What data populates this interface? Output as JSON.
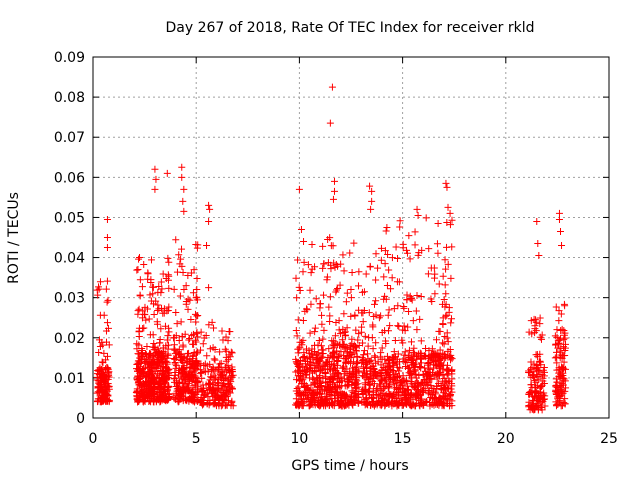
{
  "chart_data": {
    "type": "scatter",
    "title": "Day 267 of 2018, Rate Of TEC Index for receiver rkld",
    "xlabel": "GPS time / hours",
    "ylabel": "ROTI / TECUs",
    "xlim": [
      0,
      25
    ],
    "ylim": [
      0,
      0.09
    ],
    "xticks": [
      "0",
      "5",
      "10",
      "15",
      "20",
      "25"
    ],
    "yticks": [
      "0",
      "0.01",
      "0.02",
      "0.03",
      "0.04",
      "0.05",
      "0.06",
      "0.07",
      "0.08",
      "0.09"
    ],
    "grid": true,
    "marker": "+",
    "color": "#ff0000",
    "clusters": [
      {
        "x": [
          0.2,
          0.8
        ],
        "base": [
          0.004,
          0.012
        ],
        "upper": [
          0.012,
          0.035
        ],
        "n": 170
      },
      {
        "x": [
          2.1,
          3.7
        ],
        "base": [
          0.004,
          0.016
        ],
        "upper": [
          0.016,
          0.04
        ],
        "n": 480
      },
      {
        "x": [
          3.9,
          5.1
        ],
        "base": [
          0.004,
          0.016
        ],
        "upper": [
          0.016,
          0.045
        ],
        "n": 280
      },
      {
        "x": [
          5.2,
          6.8
        ],
        "base": [
          0.003,
          0.012
        ],
        "upper": [
          0.012,
          0.024
        ],
        "n": 220
      },
      {
        "x": [
          9.8,
          12.9
        ],
        "base": [
          0.003,
          0.018
        ],
        "upper": [
          0.018,
          0.045
        ],
        "n": 620
      },
      {
        "x": [
          13.0,
          17.4
        ],
        "base": [
          0.003,
          0.016
        ],
        "upper": [
          0.016,
          0.05
        ],
        "n": 800
      },
      {
        "x": [
          21.1,
          21.9
        ],
        "base": [
          0.002,
          0.012
        ],
        "upper": [
          0.012,
          0.025
        ],
        "n": 130
      },
      {
        "x": [
          22.4,
          22.9
        ],
        "base": [
          0.003,
          0.018
        ],
        "upper": [
          0.018,
          0.03
        ],
        "n": 110
      }
    ],
    "highlights": [
      {
        "x": 0.7,
        "y": 0.0495
      },
      {
        "x": 0.7,
        "y": 0.045
      },
      {
        "x": 0.7,
        "y": 0.0425
      },
      {
        "x": 3.0,
        "y": 0.062
      },
      {
        "x": 3.05,
        "y": 0.0595
      },
      {
        "x": 3.0,
        "y": 0.057
      },
      {
        "x": 3.6,
        "y": 0.061
      },
      {
        "x": 4.3,
        "y": 0.0625
      },
      {
        "x": 4.3,
        "y": 0.06
      },
      {
        "x": 4.4,
        "y": 0.057
      },
      {
        "x": 4.35,
        "y": 0.054
      },
      {
        "x": 4.4,
        "y": 0.0515
      },
      {
        "x": 5.6,
        "y": 0.053
      },
      {
        "x": 5.65,
        "y": 0.052
      },
      {
        "x": 5.6,
        "y": 0.049
      },
      {
        "x": 5.5,
        "y": 0.043
      },
      {
        "x": 5.6,
        "y": 0.0325
      },
      {
        "x": 10.0,
        "y": 0.057
      },
      {
        "x": 10.1,
        "y": 0.047
      },
      {
        "x": 10.2,
        "y": 0.044
      },
      {
        "x": 11.6,
        "y": 0.0825
      },
      {
        "x": 11.5,
        "y": 0.0735
      },
      {
        "x": 11.7,
        "y": 0.059
      },
      {
        "x": 11.7,
        "y": 0.0565
      },
      {
        "x": 11.65,
        "y": 0.0545
      },
      {
        "x": 13.4,
        "y": 0.0578
      },
      {
        "x": 13.5,
        "y": 0.0565
      },
      {
        "x": 13.5,
        "y": 0.054
      },
      {
        "x": 13.45,
        "y": 0.052
      },
      {
        "x": 15.7,
        "y": 0.052
      },
      {
        "x": 15.75,
        "y": 0.0505
      },
      {
        "x": 17.1,
        "y": 0.0585
      },
      {
        "x": 17.15,
        "y": 0.0575
      },
      {
        "x": 17.2,
        "y": 0.0525
      },
      {
        "x": 17.3,
        "y": 0.051
      },
      {
        "x": 21.5,
        "y": 0.049
      },
      {
        "x": 21.55,
        "y": 0.0435
      },
      {
        "x": 21.6,
        "y": 0.0405
      },
      {
        "x": 22.6,
        "y": 0.051
      },
      {
        "x": 22.6,
        "y": 0.0495
      },
      {
        "x": 22.65,
        "y": 0.0465
      },
      {
        "x": 22.7,
        "y": 0.043
      }
    ]
  }
}
